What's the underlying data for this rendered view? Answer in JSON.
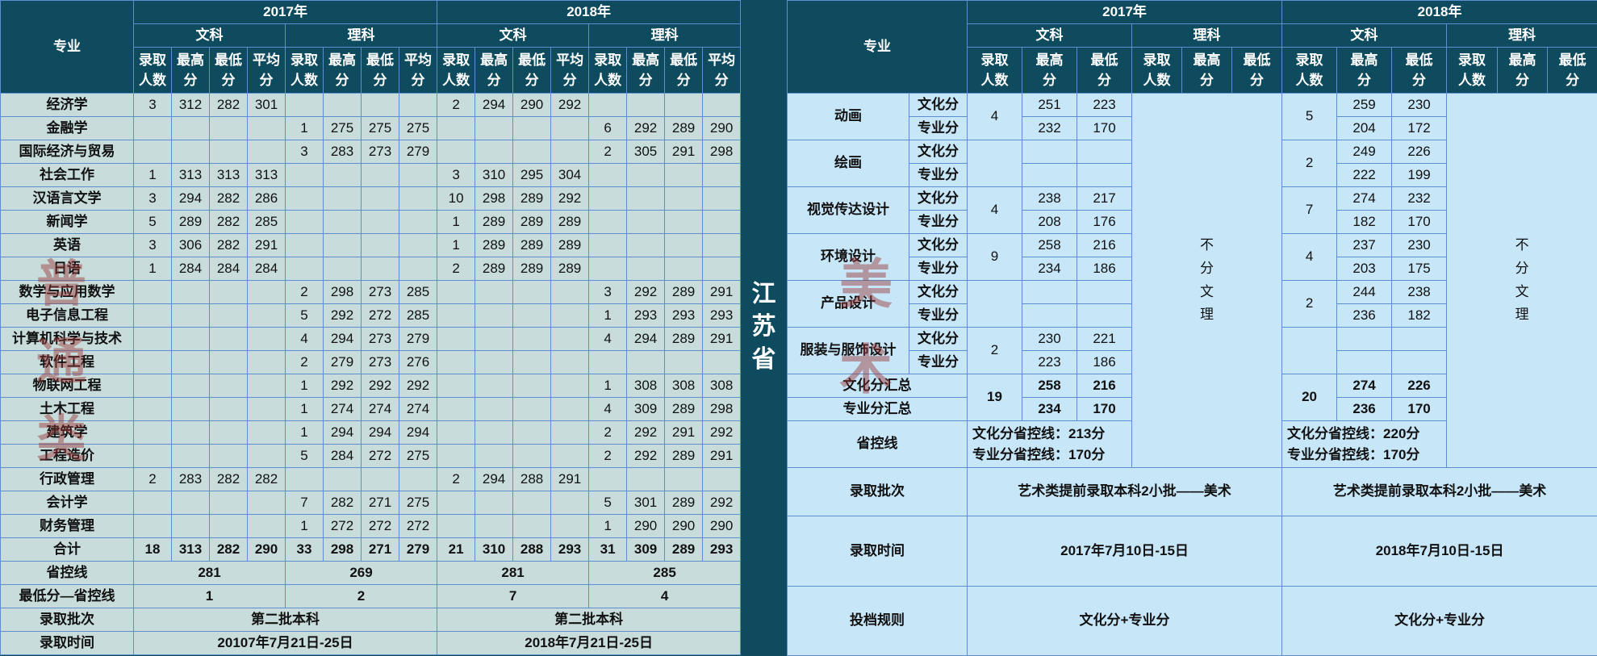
{
  "province": "江苏省",
  "left": {
    "header": {
      "major": "专业",
      "years": [
        "2017年",
        "2018年"
      ],
      "streams": [
        "文科",
        "理科",
        "文科",
        "理科"
      ],
      "subcols": [
        "录取人数",
        "最高分",
        "最低分",
        "平均分"
      ]
    },
    "rows": [
      {
        "name": "经济学",
        "v": [
          "3",
          "312",
          "282",
          "301",
          "",
          "",
          "",
          "",
          "2",
          "294",
          "290",
          "292",
          "",
          "",
          "",
          ""
        ]
      },
      {
        "name": "金融学",
        "v": [
          "",
          "",
          "",
          "",
          "1",
          "275",
          "275",
          "275",
          "",
          "",
          "",
          "",
          "6",
          "292",
          "289",
          "290"
        ]
      },
      {
        "name": "国际经济与贸易",
        "v": [
          "",
          "",
          "",
          "",
          "3",
          "283",
          "273",
          "279",
          "",
          "",
          "",
          "",
          "2",
          "305",
          "291",
          "298"
        ]
      },
      {
        "name": "社会工作",
        "v": [
          "1",
          "313",
          "313",
          "313",
          "",
          "",
          "",
          "",
          "3",
          "310",
          "295",
          "304",
          "",
          "",
          "",
          ""
        ]
      },
      {
        "name": "汉语言文学",
        "v": [
          "3",
          "294",
          "282",
          "286",
          "",
          "",
          "",
          "",
          "10",
          "298",
          "289",
          "292",
          "",
          "",
          "",
          ""
        ]
      },
      {
        "name": "新闻学",
        "v": [
          "5",
          "289",
          "282",
          "285",
          "",
          "",
          "",
          "",
          "1",
          "289",
          "289",
          "289",
          "",
          "",
          "",
          ""
        ]
      },
      {
        "name": "英语",
        "v": [
          "3",
          "306",
          "282",
          "291",
          "",
          "",
          "",
          "",
          "1",
          "289",
          "289",
          "289",
          "",
          "",
          "",
          ""
        ]
      },
      {
        "name": "日语",
        "v": [
          "1",
          "284",
          "284",
          "284",
          "",
          "",
          "",
          "",
          "2",
          "289",
          "289",
          "289",
          "",
          "",
          "",
          ""
        ]
      },
      {
        "name": "数学与应用数学",
        "v": [
          "",
          "",
          "",
          "",
          "2",
          "298",
          "273",
          "285",
          "",
          "",
          "",
          "",
          "3",
          "292",
          "289",
          "291"
        ]
      },
      {
        "name": "电子信息工程",
        "v": [
          "",
          "",
          "",
          "",
          "5",
          "292",
          "272",
          "285",
          "",
          "",
          "",
          "",
          "1",
          "293",
          "293",
          "293"
        ]
      },
      {
        "name": "计算机科学与技术",
        "v": [
          "",
          "",
          "",
          "",
          "4",
          "294",
          "273",
          "279",
          "",
          "",
          "",
          "",
          "4",
          "294",
          "289",
          "291"
        ]
      },
      {
        "name": "软件工程",
        "v": [
          "",
          "",
          "",
          "",
          "2",
          "279",
          "273",
          "276",
          "",
          "",
          "",
          "",
          "",
          "",
          "",
          ""
        ]
      },
      {
        "name": "物联网工程",
        "v": [
          "",
          "",
          "",
          "",
          "1",
          "292",
          "292",
          "292",
          "",
          "",
          "",
          "",
          "1",
          "308",
          "308",
          "308"
        ]
      },
      {
        "name": "土木工程",
        "v": [
          "",
          "",
          "",
          "",
          "1",
          "274",
          "274",
          "274",
          "",
          "",
          "",
          "",
          "4",
          "309",
          "289",
          "298"
        ]
      },
      {
        "name": "建筑学",
        "v": [
          "",
          "",
          "",
          "",
          "1",
          "294",
          "294",
          "294",
          "",
          "",
          "",
          "",
          "2",
          "292",
          "291",
          "292"
        ]
      },
      {
        "name": "工程造价",
        "v": [
          "",
          "",
          "",
          "",
          "5",
          "284",
          "272",
          "275",
          "",
          "",
          "",
          "",
          "2",
          "292",
          "289",
          "291"
        ]
      },
      {
        "name": "行政管理",
        "v": [
          "2",
          "283",
          "282",
          "282",
          "",
          "",
          "",
          "",
          "2",
          "294",
          "288",
          "291",
          "",
          "",
          "",
          ""
        ]
      },
      {
        "name": "会计学",
        "v": [
          "",
          "",
          "",
          "",
          "7",
          "282",
          "271",
          "275",
          "",
          "",
          "",
          "",
          "5",
          "301",
          "289",
          "292"
        ]
      },
      {
        "name": "财务管理",
        "v": [
          "",
          "",
          "",
          "",
          "1",
          "272",
          "272",
          "272",
          "",
          "",
          "",
          "",
          "1",
          "290",
          "290",
          "290"
        ]
      }
    ],
    "total": {
      "name": "合计",
      "v": [
        "18",
        "313",
        "282",
        "290",
        "33",
        "298",
        "271",
        "279",
        "21",
        "310",
        "288",
        "293",
        "31",
        "309",
        "289",
        "293"
      ]
    },
    "control_line": {
      "name": "省控线",
      "v": [
        "281",
        "269",
        "281",
        "285"
      ]
    },
    "min_minus_control": {
      "name": "最低分—省控线",
      "v": [
        "1",
        "2",
        "7",
        "4"
      ]
    },
    "batch": {
      "name": "录取批次",
      "v": [
        "第二批本科",
        "第二批本科"
      ]
    },
    "time": {
      "name": "录取时间",
      "v": [
        "20107年7月21日-25日",
        "2018年7月21日-25日"
      ]
    },
    "watermark": [
      "普",
      "通",
      "类"
    ]
  },
  "right": {
    "header": {
      "major": "专业",
      "years": [
        "2017年",
        "2018年"
      ],
      "streams": [
        "文科",
        "理科",
        "文科",
        "理科"
      ],
      "subcols": [
        "录取人数",
        "最高分",
        "最低分",
        "录取人数",
        "最高分",
        "最低分"
      ]
    },
    "score_labels": [
      "文化分",
      "专业分"
    ],
    "majors": [
      {
        "name": "动画",
        "n17": "4",
        "s17": [
          [
            "251",
            "223"
          ],
          [
            "232",
            "170"
          ]
        ],
        "n18": "5",
        "s18": [
          [
            "259",
            "230"
          ],
          [
            "204",
            "172"
          ]
        ]
      },
      {
        "name": "绘画",
        "n17": "",
        "s17": [
          [
            "",
            ""
          ],
          [
            "",
            ""
          ]
        ],
        "n18": "2",
        "s18": [
          [
            "249",
            "226"
          ],
          [
            "222",
            "199"
          ]
        ]
      },
      {
        "name": "视觉传达设计",
        "n17": "4",
        "s17": [
          [
            "238",
            "217"
          ],
          [
            "208",
            "176"
          ]
        ],
        "n18": "7",
        "s18": [
          [
            "274",
            "232"
          ],
          [
            "182",
            "170"
          ]
        ]
      },
      {
        "name": "环境设计",
        "n17": "9",
        "s17": [
          [
            "258",
            "216"
          ],
          [
            "234",
            "186"
          ]
        ],
        "n18": "4",
        "s18": [
          [
            "237",
            "230"
          ],
          [
            "203",
            "175"
          ]
        ]
      },
      {
        "name": "产品设计",
        "n17": "",
        "s17": [
          [
            "",
            ""
          ],
          [
            "",
            ""
          ]
        ],
        "n18": "2",
        "s18": [
          [
            "244",
            "238"
          ],
          [
            "236",
            "182"
          ]
        ]
      },
      {
        "name": "服装与服饰设计",
        "n17": "2",
        "s17": [
          [
            "230",
            "221"
          ],
          [
            "223",
            "186"
          ]
        ],
        "n18": "",
        "s18": [
          [
            "",
            ""
          ],
          [
            "",
            ""
          ]
        ]
      }
    ],
    "summary": {
      "labels": [
        "文化分汇总",
        "专业分汇总"
      ],
      "n17": "19",
      "s17": [
        [
          "258",
          "216"
        ],
        [
          "234",
          "170"
        ]
      ],
      "n18": "20",
      "s18": [
        [
          "274",
          "226"
        ],
        [
          "236",
          "170"
        ]
      ]
    },
    "no_split": [
      "不",
      "分",
      "文",
      "理"
    ],
    "control_line": {
      "name": "省控线",
      "y2017": [
        "文化分省控线：213分",
        "专业分省控线：170分"
      ],
      "y2018": [
        "文化分省控线：220分",
        "专业分省控线：170分"
      ]
    },
    "batch": {
      "name": "录取批次",
      "v": [
        "艺术类提前录取本科2小批——美术",
        "艺术类提前录取本科2小批——美术"
      ]
    },
    "time": {
      "name": "录取时间",
      "v": [
        "2017年7月10日-15日",
        "2018年7月10日-15日"
      ]
    },
    "rule": {
      "name": "投档规则",
      "v": [
        "文化分+专业分",
        "文化分+专业分"
      ]
    },
    "watermark": [
      "美",
      "术"
    ]
  },
  "colors": {
    "header_bg": "#0f4b5e",
    "left_body": "#c8dddb",
    "right_body": "#c7e6f8",
    "grid": "#5b8fd0",
    "watermark": "#963232"
  }
}
